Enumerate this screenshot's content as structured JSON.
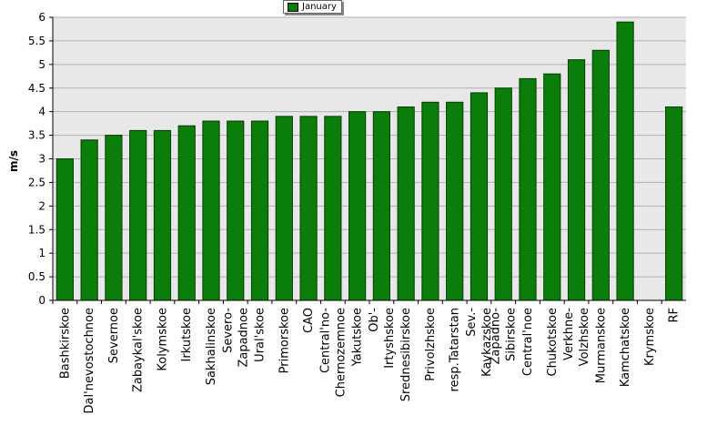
{
  "chart_data": {
    "type": "bar",
    "title": "",
    "xlabel": "",
    "ylabel": "m/s",
    "ylim": [
      0,
      6
    ],
    "yticks": [
      "0",
      "0.5",
      "1",
      "1.5",
      "2",
      "2.5",
      "3",
      "3.5",
      "4",
      "4.5",
      "5",
      "5.5",
      "6"
    ],
    "legend_position": "top",
    "grid": true,
    "colors": {
      "bar": "#0a7d0a",
      "bar_border": "#063d06",
      "plot_bg": "#e8e8e8",
      "grid": "#b0b0b0"
    },
    "categories": [
      "Bashkirskoe",
      "Dal'nevostochnoe",
      "Severnoe",
      "Zabaykal'skoe",
      "Kolymskoe",
      "Irkutskoe",
      "Sakhalinskoe",
      "Severo-Zapadnoe",
      "Ural'skoe",
      "Primorskoe",
      "CAO",
      "Central'no-Chernozemnoe",
      "Yakutskoe",
      "Ob'-Irtyshskoe",
      "Srednesibirskoe",
      "Privolzhskoe",
      "resp.Tatarstan",
      "Sev.-Kavkazskoe",
      "Zapadno-Sibirskoe",
      "Central'noe",
      "Chukotskoe",
      "Verkhne-Volzhskoe",
      "Murmanskoe",
      "Kamchatskoe",
      "Krymskoe",
      "RF"
    ],
    "category_label_lines": [
      [
        "Bashkirskoe"
      ],
      [
        "Dal'nevostochnoe"
      ],
      [
        "Severnoe"
      ],
      [
        "Zabaykal'skoe"
      ],
      [
        "Kolymskoe"
      ],
      [
        "Irkutskoe"
      ],
      [
        "Sakhalinskoe"
      ],
      [
        "Severo-",
        "Zapadnoe"
      ],
      [
        "Ural'skoe"
      ],
      [
        "Primorskoe"
      ],
      [
        "CAO"
      ],
      [
        "Central'no-",
        "Chernozemnoe"
      ],
      [
        "Yakutskoe"
      ],
      [
        "Ob'-",
        "Irtyshskoe"
      ],
      [
        "Srednesibirskoe"
      ],
      [
        "Privolzhskoe"
      ],
      [
        "resp.Tatarstan"
      ],
      [
        "Sev.-",
        "Kavkazskoe"
      ],
      [
        "Zapadno-",
        "Sibirskoe"
      ],
      [
        "Central'noe"
      ],
      [
        "Chukotskoe"
      ],
      [
        "Verkhne-",
        "Volzhskoe"
      ],
      [
        "Murmanskoe"
      ],
      [
        "Kamchatskoe"
      ],
      [
        "Krymskoe"
      ],
      [
        "RF"
      ]
    ],
    "series": [
      {
        "name": "January",
        "values": [
          3.0,
          3.4,
          3.5,
          3.6,
          3.6,
          3.7,
          3.8,
          3.8,
          3.8,
          3.9,
          3.9,
          3.9,
          4.0,
          4.0,
          4.1,
          4.2,
          4.2,
          4.4,
          4.5,
          4.7,
          4.8,
          5.1,
          5.3,
          5.9,
          null,
          4.1
        ]
      }
    ]
  }
}
